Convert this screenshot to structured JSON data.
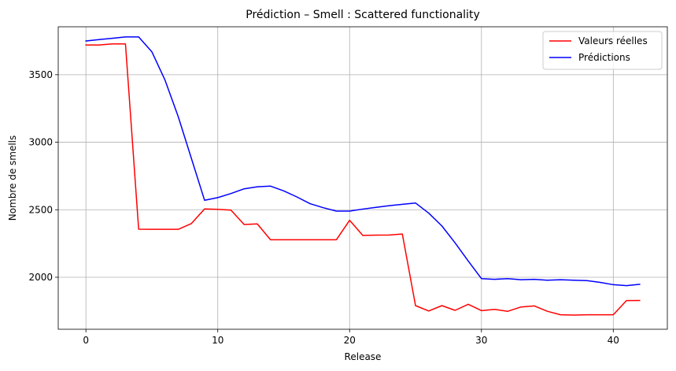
{
  "chart_data": {
    "type": "line",
    "title": "Prédiction – Smell : Scattered functionality",
    "xlabel": "Release",
    "ylabel": "Nombre de smells",
    "xlim": [
      -2.1,
      44.1
    ],
    "ylim": [
      1615,
      3855
    ],
    "xticks": [
      0,
      10,
      20,
      30,
      40
    ],
    "yticks": [
      2000,
      2500,
      3000,
      3500
    ],
    "grid": true,
    "legend_position": "top-right",
    "series": [
      {
        "name": "Valeurs réelles",
        "color": "#ff0000",
        "x": [
          0,
          1,
          2,
          3,
          4,
          5,
          6,
          7,
          8,
          9,
          10,
          11,
          12,
          13,
          14,
          15,
          16,
          17,
          18,
          19,
          20,
          21,
          22,
          23,
          24,
          25,
          26,
          27,
          28,
          29,
          30,
          31,
          32,
          33,
          34,
          35,
          36,
          37,
          38,
          39,
          40,
          41,
          42
        ],
        "values": [
          3720,
          3720,
          3728,
          3728,
          2356,
          2355,
          2355,
          2355,
          2398,
          2506,
          2503,
          2497,
          2391,
          2395,
          2278,
          2278,
          2278,
          2278,
          2278,
          2278,
          2422,
          2310,
          2312,
          2313,
          2320,
          1790,
          1750,
          1790,
          1755,
          1800,
          1753,
          1762,
          1748,
          1780,
          1788,
          1748,
          1722,
          1720,
          1722,
          1722,
          1722,
          1827,
          1828
        ]
      },
      {
        "name": "Prédictions",
        "color": "#0000ff",
        "x": [
          0,
          1,
          2,
          3,
          4,
          5,
          6,
          7,
          8,
          9,
          10,
          11,
          12,
          13,
          14,
          15,
          16,
          17,
          18,
          19,
          20,
          21,
          22,
          23,
          24,
          25,
          26,
          27,
          28,
          29,
          30,
          31,
          32,
          33,
          34,
          35,
          36,
          37,
          38,
          39,
          40,
          41,
          42
        ],
        "values": [
          3750,
          3760,
          3770,
          3780,
          3780,
          3670,
          3460,
          3190,
          2880,
          2570,
          2590,
          2620,
          2655,
          2670,
          2675,
          2640,
          2595,
          2545,
          2515,
          2490,
          2490,
          2505,
          2518,
          2530,
          2540,
          2550,
          2475,
          2380,
          2255,
          2120,
          1990,
          1985,
          1990,
          1982,
          1985,
          1978,
          1982,
          1978,
          1975,
          1962,
          1945,
          1938,
          1948
        ]
      }
    ]
  }
}
